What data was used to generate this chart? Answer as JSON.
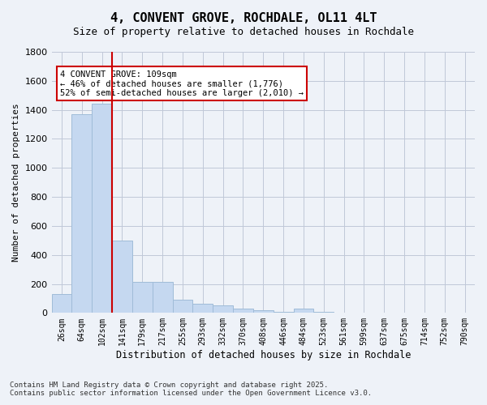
{
  "title": "4, CONVENT GROVE, ROCHDALE, OL11 4LT",
  "subtitle": "Size of property relative to detached houses in Rochdale",
  "xlabel": "Distribution of detached houses by size in Rochdale",
  "ylabel": "Number of detached properties",
  "categories": [
    "26sqm",
    "64sqm",
    "102sqm",
    "141sqm",
    "179sqm",
    "217sqm",
    "255sqm",
    "293sqm",
    "332sqm",
    "370sqm",
    "408sqm",
    "446sqm",
    "484sqm",
    "523sqm",
    "561sqm",
    "599sqm",
    "637sqm",
    "675sqm",
    "714sqm",
    "752sqm",
    "790sqm"
  ],
  "values": [
    130,
    1370,
    1440,
    500,
    215,
    215,
    90,
    65,
    50,
    30,
    20,
    10,
    30,
    5,
    2,
    1,
    0,
    0,
    0,
    0,
    0
  ],
  "bar_color": "#c5d8f0",
  "bar_edge_color": "#a0bcd8",
  "grid_color": "#c0c8d8",
  "vline_x": 2.5,
  "vline_color": "#cc0000",
  "annotation_text": "4 CONVENT GROVE: 109sqm\n← 46% of detached houses are smaller (1,776)\n52% of semi-detached houses are larger (2,010) →",
  "annotation_box_color": "#ffffff",
  "annotation_box_edge": "#cc0000",
  "ylim": [
    0,
    1800
  ],
  "yticks": [
    0,
    200,
    400,
    600,
    800,
    1000,
    1200,
    1400,
    1600,
    1800
  ],
  "footnote": "Contains HM Land Registry data © Crown copyright and database right 2025.\nContains public sector information licensed under the Open Government Licence v3.0.",
  "background_color": "#eef2f8"
}
